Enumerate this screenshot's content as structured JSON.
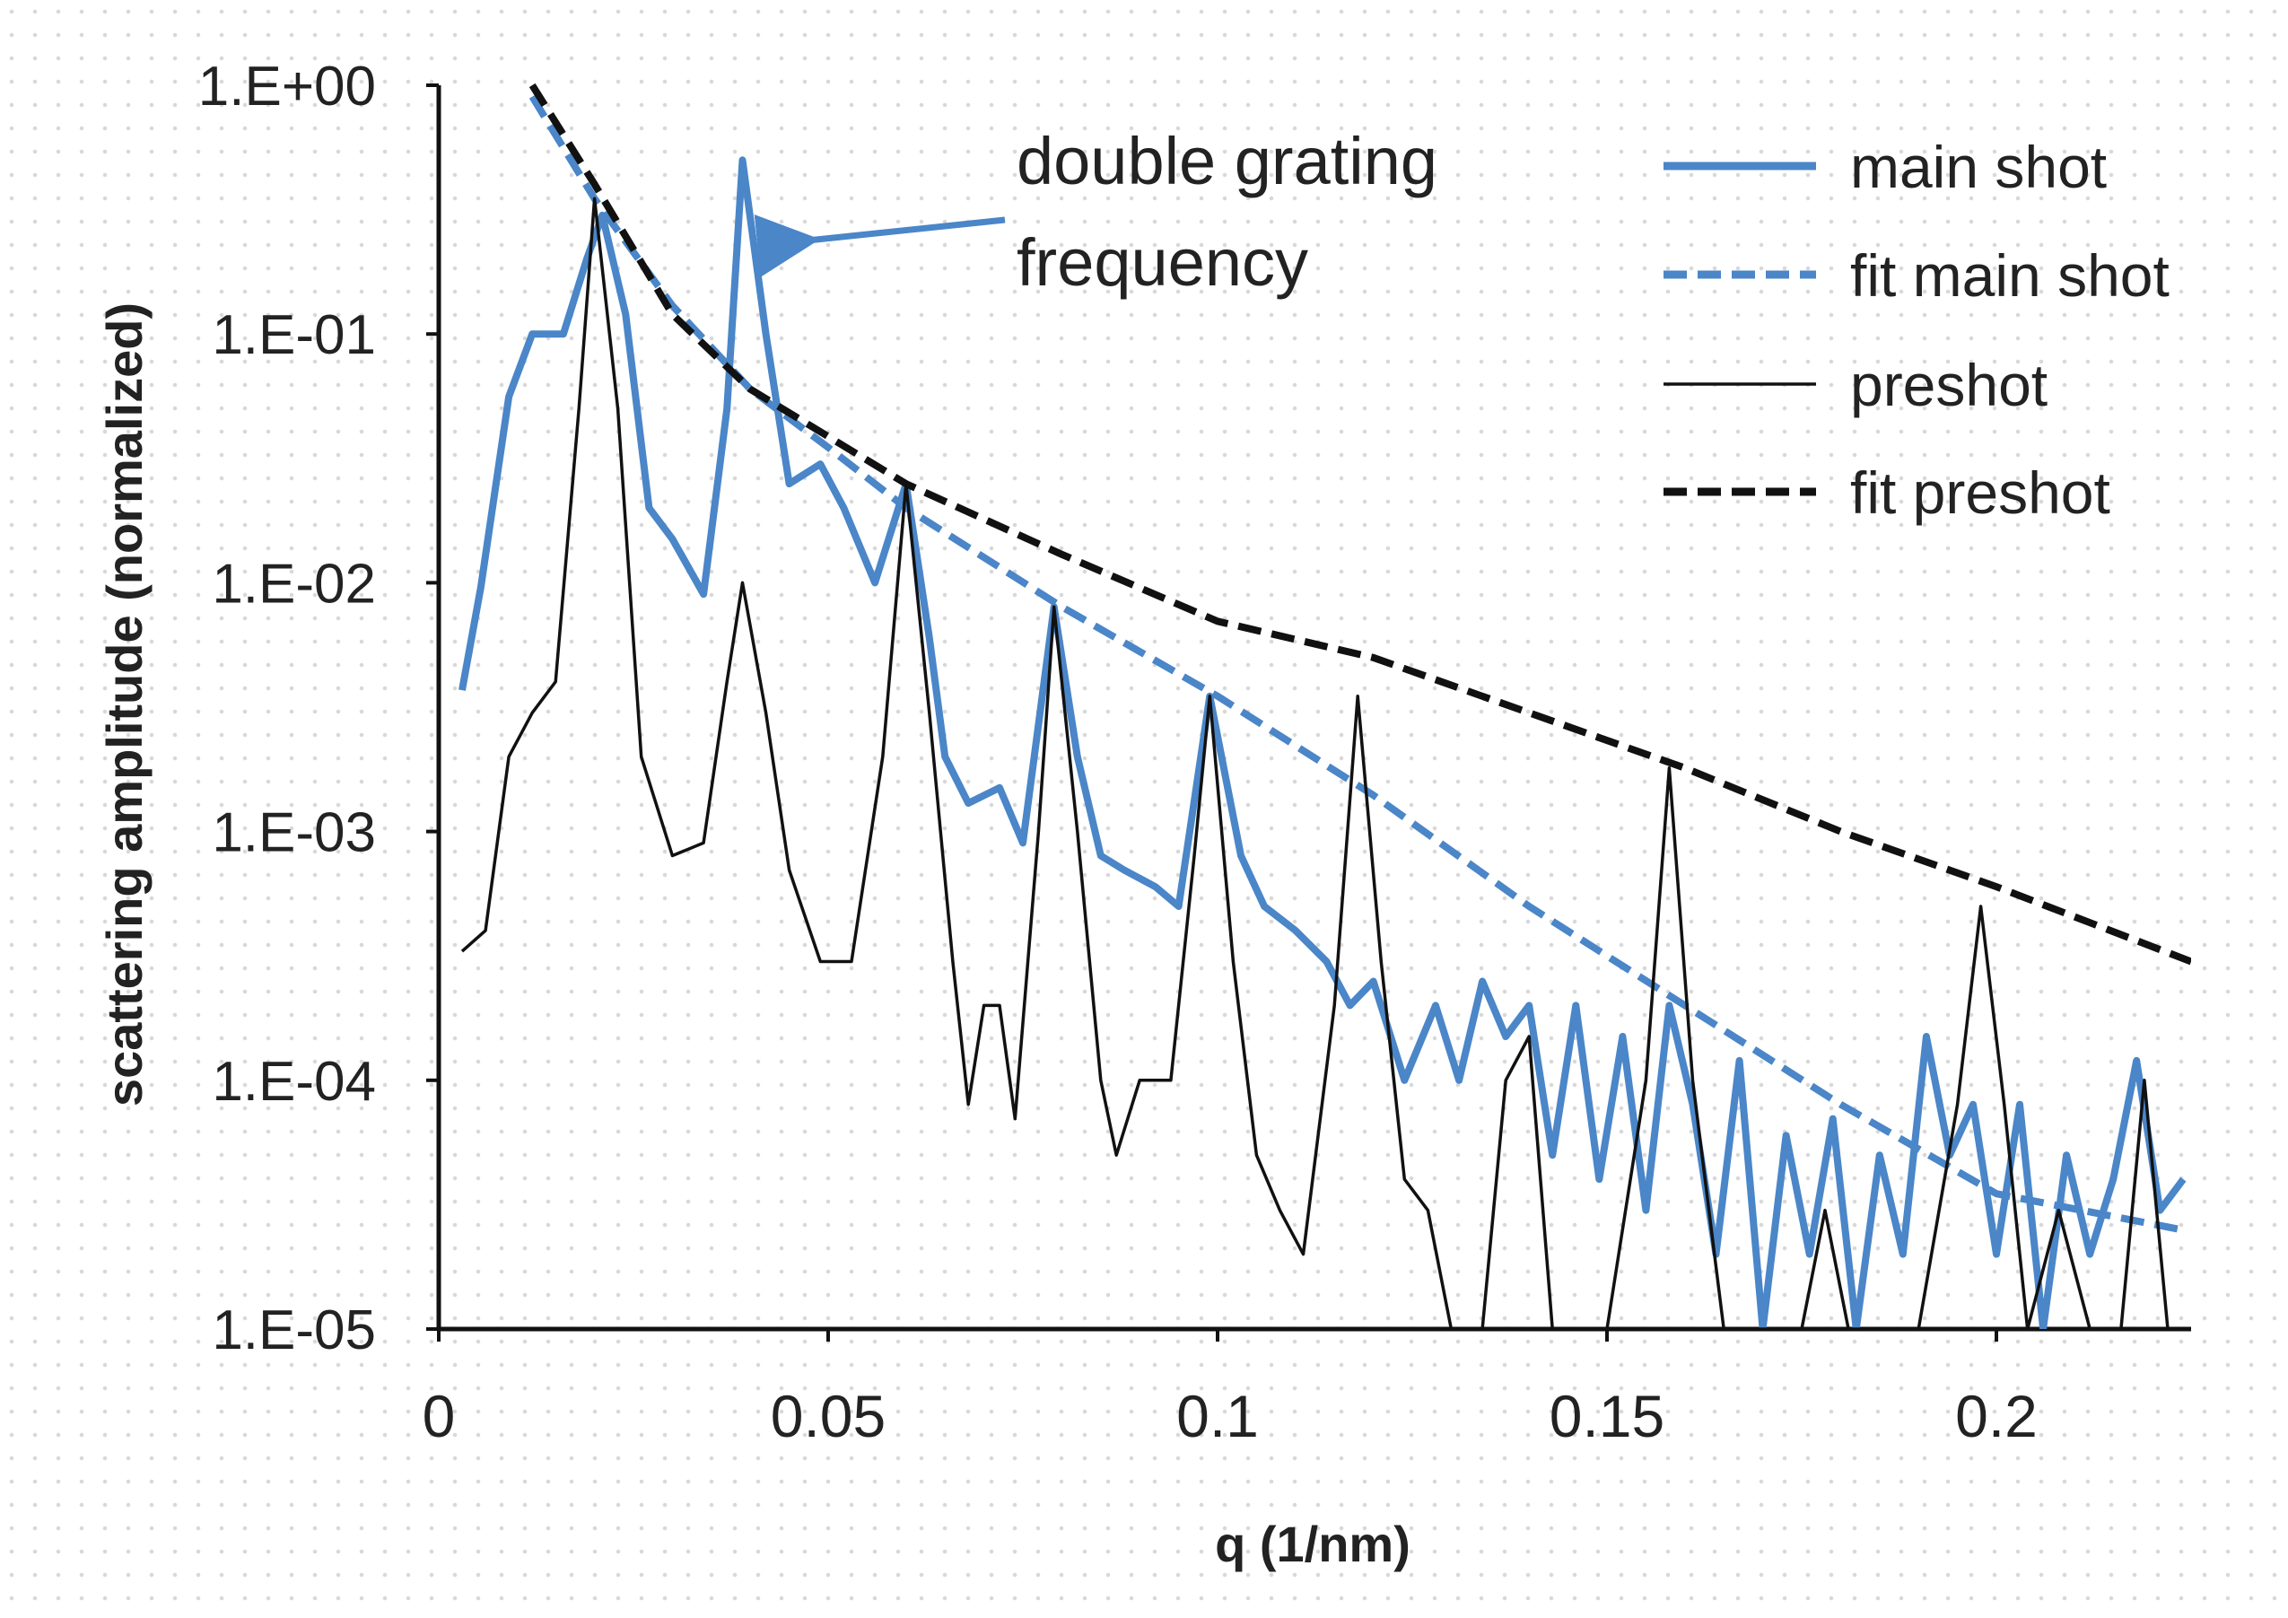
{
  "chart_data": {
    "type": "line",
    "xlabel": "q (1/nm)",
    "ylabel": "scattering amplitude (normalized)",
    "annotation": [
      "double grating",
      "frequency"
    ],
    "log_y": true,
    "legend": "upper right",
    "xlim": [
      0,
      0.225
    ],
    "xticks": [
      0,
      0.05,
      0.1,
      0.15,
      0.2
    ],
    "ylim": [
      1e-05,
      1
    ],
    "yticks": [
      {
        "value": 1e-05,
        "label": "1.E-05"
      },
      {
        "value": 0.0001,
        "label": "1.E-04"
      },
      {
        "value": 0.001,
        "label": "1.E-03"
      },
      {
        "value": 0.01,
        "label": "1.E-02"
      },
      {
        "value": 0.1,
        "label": "1.E-01"
      },
      {
        "value": 1,
        "label": "1.E+00"
      }
    ],
    "series": [
      {
        "name": "main shot",
        "color": "#4a86c8",
        "dash": false,
        "thick": true,
        "x": [
          0.003,
          0.0054,
          0.009,
          0.012,
          0.016,
          0.019,
          0.021,
          0.024,
          0.027,
          0.03,
          0.034,
          0.037,
          0.039,
          0.042,
          0.045,
          0.049,
          0.052,
          0.056,
          0.06,
          0.063,
          0.065,
          0.068,
          0.072,
          0.075,
          0.079,
          0.082,
          0.085,
          0.088,
          0.092,
          0.095,
          0.099,
          0.103,
          0.106,
          0.11,
          0.114,
          0.117,
          0.12,
          0.124,
          0.128,
          0.131,
          0.134,
          0.137,
          0.14,
          0.143,
          0.146,
          0.149,
          0.152,
          0.155,
          0.158,
          0.161,
          0.164,
          0.167,
          0.17,
          0.173,
          0.176,
          0.179,
          0.182,
          0.185,
          0.188,
          0.191,
          0.194,
          0.197,
          0.2,
          0.203,
          0.206,
          0.209,
          0.212,
          0.215,
          0.218,
          0.221,
          0.224
        ],
        "values": [
          0.0037,
          0.0096,
          0.056,
          0.1,
          0.1,
          0.2,
          0.3,
          0.12,
          0.02,
          0.015,
          0.009,
          0.05,
          0.5,
          0.1,
          0.025,
          0.03,
          0.02,
          0.01,
          0.025,
          0.006,
          0.002,
          0.0013,
          0.0015,
          0.0009,
          0.008,
          0.002,
          0.0008,
          0.0007,
          0.0006,
          0.0005,
          0.0035,
          0.0008,
          0.0005,
          0.0004,
          0.0003,
          0.0002,
          0.00025,
          0.0001,
          0.0002,
          0.0001,
          0.00025,
          0.00015,
          0.0002,
          5e-05,
          0.0002,
          4e-05,
          0.00015,
          3e-05,
          0.0002,
          8e-05,
          2e-05,
          0.00012,
          1e-05,
          6e-05,
          2e-05,
          7e-05,
          1e-05,
          5e-05,
          2e-05,
          0.00015,
          5e-05,
          8e-05,
          2e-05,
          8e-05,
          1e-05,
          5e-05,
          2e-05,
          4e-05,
          0.00012,
          3e-05,
          4e-05
        ]
      },
      {
        "name": "fit main shot",
        "color": "#4a86c8",
        "dash": true,
        "thick": true,
        "x": [
          0.012,
          0.02,
          0.03,
          0.04,
          0.05,
          0.06,
          0.08,
          0.1,
          0.12,
          0.14,
          0.16,
          0.18,
          0.2,
          0.224
        ],
        "values": [
          0.9,
          0.35,
          0.13,
          0.06,
          0.035,
          0.02,
          0.008,
          0.0035,
          0.0014,
          0.0005,
          0.0002,
          8e-05,
          3.5e-05,
          2.5e-05
        ]
      },
      {
        "name": "preshot",
        "color": "#111111",
        "dash": false,
        "thick": false,
        "x": [
          0.003,
          0.006,
          0.009,
          0.012,
          0.015,
          0.018,
          0.02,
          0.023,
          0.026,
          0.03,
          0.034,
          0.037,
          0.039,
          0.042,
          0.045,
          0.049,
          0.053,
          0.057,
          0.06,
          0.063,
          0.066,
          0.068,
          0.07,
          0.072,
          0.074,
          0.077,
          0.079,
          0.082,
          0.085,
          0.087,
          0.09,
          0.094,
          0.097,
          0.099,
          0.102,
          0.105,
          0.108,
          0.111,
          0.115,
          0.118,
          0.121,
          0.124,
          0.127,
          0.13,
          0.134,
          0.137,
          0.14,
          0.143,
          0.15,
          0.155,
          0.158,
          0.161,
          0.165,
          0.175,
          0.178,
          0.181,
          0.19,
          0.195,
          0.198,
          0.201,
          0.204,
          0.208,
          0.212,
          0.216,
          0.219,
          0.222
        ],
        "values": [
          0.00033,
          0.0004,
          0.002,
          0.003,
          0.004,
          0.05,
          0.35,
          0.05,
          0.002,
          0.0008,
          0.0009,
          0.004,
          0.01,
          0.003,
          0.0007,
          0.0003,
          0.0003,
          0.002,
          0.025,
          0.003,
          0.0003,
          8e-05,
          0.0002,
          0.0002,
          7e-05,
          0.001,
          0.008,
          0.001,
          0.0001,
          5e-05,
          0.0001,
          0.0001,
          0.0008,
          0.0035,
          0.0003,
          5e-05,
          3e-05,
          2e-05,
          0.0002,
          0.0035,
          0.0003,
          4e-05,
          3e-05,
          1e-05,
          1e-05,
          0.0001,
          0.00015,
          1e-05,
          1e-05,
          0.0001,
          0.0018,
          0.0001,
          1e-05,
          1e-05,
          3e-05,
          1e-05,
          1e-05,
          8e-05,
          0.0005,
          8e-05,
          1e-05,
          3e-05,
          1e-05,
          1e-05,
          0.0001,
          1e-05
        ]
      },
      {
        "name": "fit preshot",
        "color": "#111111",
        "dash": true,
        "thick": true,
        "x": [
          0.012,
          0.02,
          0.03,
          0.04,
          0.06,
          0.08,
          0.1,
          0.12,
          0.14,
          0.16,
          0.18,
          0.2,
          0.225
        ],
        "values": [
          1,
          0.4,
          0.12,
          0.06,
          0.025,
          0.013,
          0.007,
          0.005,
          0.003,
          0.0018,
          0.001,
          0.0006,
          0.0003
        ]
      }
    ]
  }
}
